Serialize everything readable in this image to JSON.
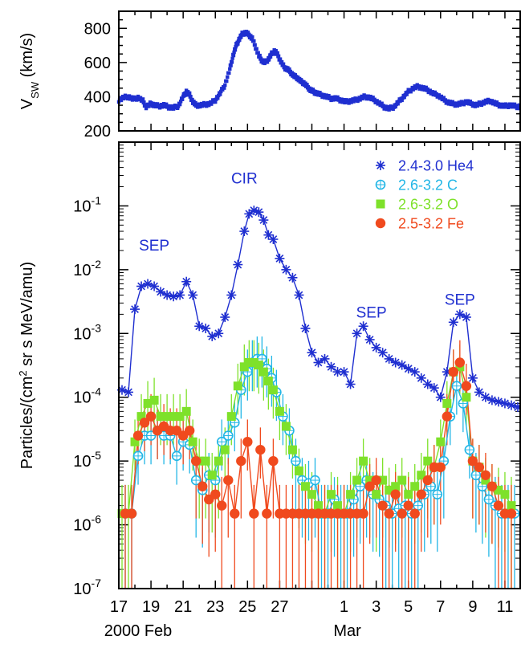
{
  "chart_data": [
    {
      "type": "scatter",
      "panel": "top",
      "ylabel": "V",
      "ylabel_sub": "SW",
      "ylabel_unit": " (km/s)",
      "ylim": [
        200,
        900
      ],
      "yticks": [
        200,
        400,
        600,
        800
      ],
      "color": "#1f2fd0",
      "series": [
        {
          "x": [
            17.0,
            17.3,
            17.6,
            17.9,
            18.2,
            18.5,
            18.7,
            19.0,
            19.2,
            19.5,
            19.8,
            20.1,
            20.4,
            20.7,
            21.0,
            21.2,
            21.4,
            21.6,
            21.8,
            22.1,
            22.4,
            22.7,
            23.0,
            23.3,
            23.6,
            23.9,
            24.1,
            24.3,
            24.5,
            24.7,
            24.9,
            25.1,
            25.3,
            25.5,
            25.7,
            25.9,
            26.1,
            26.3,
            26.5,
            26.7,
            26.9,
            27.1,
            27.3,
            27.5,
            27.7,
            27.9,
            28.1,
            28.3,
            28.5,
            28.7,
            28.9,
            29.1,
            29.3,
            29.6,
            29.9,
            30.2,
            30.5,
            30.8,
            31.1,
            31.4,
            31.7,
            32.0,
            32.3,
            32.6,
            32.9,
            33.2,
            33.5,
            33.8,
            34.1,
            34.4,
            34.7,
            35.0,
            35.3,
            35.6,
            35.9,
            36.2,
            36.5,
            36.8,
            37.1,
            37.4,
            37.7,
            38.0,
            38.3,
            38.6,
            38.9,
            39.2,
            39.5,
            39.8,
            40.1,
            40.4,
            40.7,
            41.0,
            41.3,
            41.6,
            41.9
          ],
          "y": [
            380,
            395,
            400,
            385,
            395,
            375,
            340,
            360,
            350,
            345,
            350,
            340,
            335,
            345,
            400,
            430,
            410,
            370,
            350,
            350,
            355,
            360,
            380,
            420,
            470,
            560,
            640,
            700,
            740,
            770,
            775,
            760,
            740,
            690,
            640,
            610,
            600,
            620,
            650,
            670,
            640,
            600,
            570,
            560,
            540,
            520,
            510,
            490,
            480,
            460,
            440,
            430,
            420,
            410,
            400,
            390,
            390,
            380,
            370,
            375,
            380,
            390,
            400,
            395,
            380,
            360,
            340,
            330,
            340,
            370,
            400,
            430,
            450,
            460,
            450,
            440,
            420,
            410,
            390,
            370,
            360,
            355,
            360,
            370,
            360,
            350,
            360,
            370,
            375,
            360,
            350,
            345,
            350,
            345,
            340
          ]
        }
      ]
    },
    {
      "type": "line",
      "panel": "bottom",
      "ylabel": "Particles/(cm",
      "ylabel_sup": "2",
      "ylabel_unit": " sr s MeV/amu)",
      "yscale": "log",
      "ylim": [
        1e-07,
        1
      ],
      "yticks": [
        -7,
        -6,
        -5,
        -4,
        -3,
        -2,
        -1
      ],
      "ytick_labels": [
        {
          "base": "10",
          "exp": "-7"
        },
        {
          "base": "10",
          "exp": "-6"
        },
        {
          "base": "10",
          "exp": "-5"
        },
        {
          "base": "10",
          "exp": "-4"
        },
        {
          "base": "10",
          "exp": "-3"
        },
        {
          "base": "10",
          "exp": "-2"
        },
        {
          "base": "10",
          "exp": "-1"
        }
      ],
      "xlim": [
        17,
        42
      ],
      "xticks": [
        17,
        19,
        21,
        23,
        25,
        27,
        29,
        31,
        33,
        35,
        37,
        39,
        41
      ],
      "xtick_labels": [
        "17",
        "19",
        "21",
        "23",
        "25",
        "27",
        "1",
        "3",
        "5",
        "7",
        "9",
        "11"
      ],
      "xtick_label_positions": [
        17,
        19,
        21,
        23,
        25,
        27,
        31,
        33,
        35,
        37,
        39,
        41
      ],
      "month_labels": [
        {
          "text": "2000 Feb",
          "x": 18.2
        },
        {
          "text": "Mar",
          "x": 31.2
        }
      ],
      "annotations": [
        {
          "text": "SEP",
          "x": 19.2,
          "y": -1.7
        },
        {
          "text": "CIR",
          "x": 24.8,
          "y": -0.65
        },
        {
          "text": "SEP",
          "x": 32.7,
          "y": -2.75
        },
        {
          "text": "SEP",
          "x": 38.2,
          "y": -2.55
        }
      ],
      "series": [
        {
          "name": "2.4-3.0 He4",
          "marker": "asterisk",
          "color": "#1f2fd0",
          "x": [
            17.2,
            17.6,
            18.0,
            18.4,
            18.8,
            19.2,
            19.6,
            20.0,
            20.4,
            20.8,
            21.2,
            21.6,
            22.0,
            22.4,
            22.8,
            23.2,
            23.6,
            24.0,
            24.4,
            24.8,
            25.1,
            25.4,
            25.7,
            26.0,
            26.3,
            26.6,
            27.0,
            27.4,
            27.8,
            28.2,
            28.6,
            29.0,
            29.4,
            29.8,
            30.2,
            30.6,
            31.0,
            31.4,
            31.8,
            32.2,
            32.6,
            33.0,
            33.4,
            33.8,
            34.2,
            34.6,
            35.0,
            35.4,
            35.8,
            36.2,
            36.6,
            37.0,
            37.4,
            37.8,
            38.2,
            38.6,
            39.0,
            39.4,
            39.8,
            40.2,
            40.6,
            41.0,
            41.4,
            41.8
          ],
          "y": [
            0.00013,
            0.00012,
            0.0024,
            0.0055,
            0.006,
            0.0055,
            0.0045,
            0.004,
            0.0038,
            0.004,
            0.0065,
            0.004,
            0.0013,
            0.0012,
            0.0009,
            0.001,
            0.0018,
            0.004,
            0.012,
            0.04,
            0.075,
            0.085,
            0.08,
            0.06,
            0.035,
            0.03,
            0.015,
            0.01,
            0.0075,
            0.004,
            0.0012,
            0.0005,
            0.00035,
            0.0004,
            0.0003,
            0.00025,
            0.00025,
            0.00016,
            0.001,
            0.0013,
            0.0008,
            0.0006,
            0.0005,
            0.0004,
            0.00035,
            0.00032,
            0.00028,
            0.00025,
            0.0002,
            0.00016,
            0.00014,
            0.0001,
            0.00025,
            0.0015,
            0.002,
            0.0018,
            0.0002,
            0.00012,
            0.0001,
            9e-05,
            8.5e-05,
            8e-05,
            7.5e-05,
            7e-05
          ]
        },
        {
          "name": "2.6-3.2 C",
          "marker": "circle-open",
          "color": "#22b6e6",
          "x": [
            17.4,
            17.8,
            18.2,
            18.6,
            19.0,
            19.4,
            19.8,
            20.2,
            20.6,
            21.0,
            21.4,
            21.8,
            22.2,
            22.6,
            23.0,
            23.4,
            23.8,
            24.2,
            24.6,
            25.0,
            25.3,
            25.6,
            25.9,
            26.2,
            26.5,
            26.8,
            27.2,
            27.6,
            28.0,
            28.4,
            28.8,
            29.2,
            29.6,
            30.0,
            30.4,
            30.8,
            31.2,
            31.6,
            32.0,
            32.4,
            32.8,
            33.2,
            33.6,
            34.0,
            34.4,
            34.8,
            35.2,
            35.6,
            36.0,
            36.4,
            36.8,
            37.2,
            37.6,
            38.0,
            38.4,
            38.8,
            39.2,
            39.6,
            40.0,
            40.4,
            40.8,
            41.2,
            41.6
          ],
          "y": [
            1.5e-06,
            1.5e-06,
            1.2e-05,
            2.5e-05,
            2.5e-05,
            3e-05,
            2.5e-05,
            2.5e-05,
            1.2e-05,
            2e-05,
            1.8e-05,
            5e-06,
            3.5e-06,
            6e-06,
            5e-06,
            2e-05,
            2.5e-05,
            4e-05,
            0.00013,
            0.00025,
            0.00035,
            0.0004,
            0.0004,
            0.00028,
            0.0002,
            0.00012,
            5e-05,
            3e-05,
            1e-05,
            5e-06,
            4.5e-06,
            5e-06,
            1.5e-06,
            1.5e-06,
            2.5e-06,
            1.5e-06,
            1.5e-06,
            2.5e-06,
            4e-06,
            5e-06,
            3e-06,
            2.5e-06,
            2e-06,
            1.5e-06,
            1.8e-06,
            2e-06,
            1.5e-06,
            2e-06,
            3e-06,
            4e-06,
            3e-06,
            1e-05,
            5e-05,
            0.00015,
            8e-05,
            1.5e-05,
            6e-06,
            4e-06,
            2.5e-06,
            2e-06,
            1.5e-06,
            1.5e-06,
            1.5e-06
          ]
        },
        {
          "name": "2.6-3.2 O",
          "marker": "square-filled",
          "color": "#7ee12a",
          "x": [
            17.2,
            17.6,
            18.0,
            18.4,
            18.8,
            19.2,
            19.6,
            20.0,
            20.4,
            20.8,
            21.2,
            21.6,
            22.0,
            22.4,
            22.8,
            23.2,
            23.6,
            24.0,
            24.4,
            24.8,
            25.1,
            25.4,
            25.7,
            26.0,
            26.3,
            26.6,
            27.0,
            27.4,
            27.8,
            28.2,
            28.6,
            29.0,
            29.4,
            29.8,
            30.2,
            30.6,
            31.0,
            31.4,
            31.8,
            32.2,
            32.6,
            33.0,
            33.4,
            33.8,
            34.2,
            34.6,
            35.0,
            35.4,
            35.8,
            36.2,
            36.6,
            37.0,
            37.4,
            37.8,
            38.2,
            38.6,
            39.0,
            39.4,
            39.8,
            40.2,
            40.6,
            41.0,
            41.4
          ],
          "y": [
            1.5e-06,
            1.5e-06,
            2e-05,
            5e-05,
            8e-05,
            9e-05,
            5e-05,
            5e-05,
            5e-05,
            5e-05,
            6e-05,
            2e-05,
            1e-05,
            1e-05,
            6e-06,
            1e-05,
            1.5e-05,
            5e-05,
            0.00015,
            0.0003,
            0.00035,
            0.00035,
            0.00032,
            0.00025,
            0.00018,
            0.00013,
            6e-05,
            3.5e-05,
            1.5e-05,
            7e-06,
            4e-06,
            3e-06,
            2e-06,
            1.5e-06,
            3e-06,
            2e-06,
            1.5e-06,
            3e-06,
            5e-06,
            1e-05,
            5e-06,
            3e-06,
            5e-06,
            3.5e-06,
            4e-06,
            5e-06,
            3e-06,
            4e-06,
            6e-06,
            1e-05,
            8e-06,
            2e-05,
            8e-05,
            0.00025,
            0.0003,
            0.0001,
            1e-05,
            8e-06,
            5e-06,
            4e-06,
            3.5e-06,
            3e-06,
            2e-06
          ]
        },
        {
          "name": "2.5-3.2 Fe",
          "marker": "circle-filled",
          "color": "#f04a1e",
          "x": [
            17.4,
            17.8,
            18.2,
            18.6,
            19.0,
            19.4,
            19.8,
            20.2,
            20.6,
            21.0,
            21.4,
            21.8,
            22.2,
            22.6,
            23.0,
            23.4,
            23.8,
            24.2,
            24.6,
            25.0,
            25.4,
            25.8,
            26.2,
            26.6,
            27.0,
            27.4,
            27.8,
            28.2,
            28.6,
            29.0,
            29.4,
            29.8,
            30.2,
            30.6,
            31.0,
            31.4,
            31.8,
            32.2,
            32.6,
            33.0,
            33.4,
            33.8,
            34.2,
            34.6,
            35.0,
            35.4,
            35.8,
            36.2,
            36.6,
            37.0,
            37.4,
            37.8,
            38.2,
            38.6,
            39.0,
            39.4,
            39.8,
            40.2,
            40.6,
            41.0,
            41.4
          ],
          "y": [
            1.5e-06,
            1.5e-06,
            2.5e-05,
            4e-05,
            5e-05,
            3e-05,
            3.5e-05,
            3e-05,
            3e-05,
            2.5e-05,
            3e-05,
            1e-05,
            4e-06,
            2.5e-06,
            3e-06,
            2e-06,
            5e-06,
            1.5e-06,
            1e-05,
            2e-05,
            1.5e-06,
            1.5e-05,
            1.5e-06,
            1e-05,
            1.5e-06,
            1.5e-06,
            1.5e-06,
            1.5e-06,
            1.5e-06,
            1.5e-06,
            1.5e-06,
            1.5e-06,
            1.5e-06,
            1.5e-06,
            1.5e-06,
            1.5e-06,
            1.5e-06,
            1.5e-06,
            4e-06,
            5e-06,
            2e-06,
            1.5e-06,
            3e-06,
            1.5e-06,
            2e-06,
            1.5e-06,
            3e-06,
            5e-06,
            8e-06,
            8e-06,
            5e-05,
            0.00025,
            0.00035,
            0.00015,
            1e-05,
            8e-06,
            6e-06,
            4e-06,
            2e-06,
            1.5e-06,
            1.5e-06
          ]
        }
      ]
    }
  ]
}
